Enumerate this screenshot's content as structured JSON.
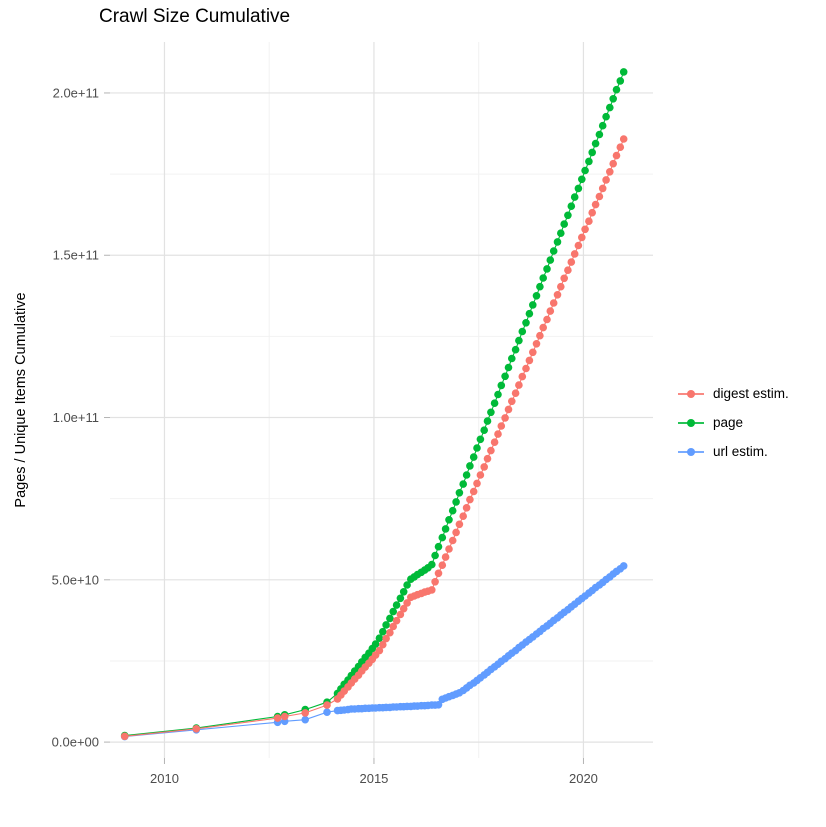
{
  "title": "Crawl Size Cumulative",
  "chart_data": {
    "type": "scatter",
    "title": "Crawl Size Cumulative",
    "xlabel": "",
    "ylabel": "Pages / Unique Items Cumulative",
    "x_tick_labels": [
      "2010",
      "2015",
      "2020"
    ],
    "x_ticks": [
      2010,
      2015,
      2020
    ],
    "x_minor": [
      2012.5,
      2017.5
    ],
    "y_tick_labels": [
      "0.0e+00",
      "5.0e+10",
      "1.0e+11",
      "1.5e+11",
      "2.0e+11"
    ],
    "y_ticks_e9": [
      0,
      50,
      100,
      150,
      200
    ],
    "y_minor_e9": [
      25,
      75,
      125,
      175
    ],
    "xlim": [
      2008.7,
      2021.66
    ],
    "ylim_e9": [
      -4.9,
      215.7
    ],
    "grid": true,
    "legend_position": "right",
    "values_unit": "points are [year, value in billions (1e9)]",
    "series": [
      {
        "name": "digest estim.",
        "color": "#F8766D",
        "points": [
          [
            2009.05,
            1.8
          ],
          [
            2010.76,
            4.1
          ],
          [
            2012.7,
            7.4
          ],
          [
            2012.87,
            7.9
          ],
          [
            2013.36,
            9.0
          ],
          [
            2013.88,
            11.4
          ],
          [
            2014.13,
            13.3
          ],
          [
            2014.21,
            14.5
          ],
          [
            2014.29,
            15.7
          ],
          [
            2014.38,
            17.0
          ],
          [
            2014.46,
            18.2
          ],
          [
            2014.54,
            19.4
          ],
          [
            2014.63,
            20.6
          ],
          [
            2014.71,
            21.9
          ],
          [
            2014.79,
            23.1
          ],
          [
            2014.88,
            24.3
          ],
          [
            2014.96,
            25.5
          ],
          [
            2015.04,
            26.8
          ],
          [
            2015.13,
            28.2
          ],
          [
            2015.21,
            30.0
          ],
          [
            2015.29,
            31.9
          ],
          [
            2015.38,
            33.7
          ],
          [
            2015.46,
            35.6
          ],
          [
            2015.54,
            37.4
          ],
          [
            2015.63,
            39.3
          ],
          [
            2015.71,
            41.1
          ],
          [
            2015.79,
            42.9
          ],
          [
            2015.88,
            44.6
          ],
          [
            2015.96,
            45.0
          ],
          [
            2016.04,
            45.4
          ],
          [
            2016.13,
            45.8
          ],
          [
            2016.21,
            46.2
          ],
          [
            2016.29,
            46.5
          ],
          [
            2016.38,
            46.9
          ],
          [
            2016.46,
            49.4
          ],
          [
            2016.54,
            52.0
          ],
          [
            2016.63,
            54.5
          ],
          [
            2016.71,
            57.0
          ],
          [
            2016.79,
            59.5
          ],
          [
            2016.88,
            62.1
          ],
          [
            2016.96,
            64.6
          ],
          [
            2017.04,
            67.1
          ],
          [
            2017.13,
            69.6
          ],
          [
            2017.21,
            72.2
          ],
          [
            2017.29,
            74.7
          ],
          [
            2017.38,
            77.2
          ],
          [
            2017.46,
            79.7
          ],
          [
            2017.54,
            82.3
          ],
          [
            2017.63,
            84.8
          ],
          [
            2017.71,
            87.3
          ],
          [
            2017.79,
            89.8
          ],
          [
            2017.88,
            92.4
          ],
          [
            2017.96,
            94.9
          ],
          [
            2018.04,
            97.4
          ],
          [
            2018.13,
            99.9
          ],
          [
            2018.21,
            102.5
          ],
          [
            2018.29,
            105.0
          ],
          [
            2018.38,
            107.5
          ],
          [
            2018.46,
            110.0
          ],
          [
            2018.54,
            112.6
          ],
          [
            2018.63,
            115.1
          ],
          [
            2018.71,
            117.6
          ],
          [
            2018.79,
            120.1
          ],
          [
            2018.88,
            122.7
          ],
          [
            2018.96,
            125.2
          ],
          [
            2019.04,
            127.7
          ],
          [
            2019.13,
            130.2
          ],
          [
            2019.21,
            132.8
          ],
          [
            2019.29,
            135.3
          ],
          [
            2019.38,
            137.8
          ],
          [
            2019.46,
            140.3
          ],
          [
            2019.54,
            142.9
          ],
          [
            2019.63,
            145.4
          ],
          [
            2019.71,
            147.9
          ],
          [
            2019.79,
            150.4
          ],
          [
            2019.88,
            153.0
          ],
          [
            2019.96,
            155.5
          ],
          [
            2020.04,
            158.0
          ],
          [
            2020.13,
            160.5
          ],
          [
            2020.21,
            163.1
          ],
          [
            2020.29,
            165.6
          ],
          [
            2020.38,
            168.1
          ],
          [
            2020.46,
            170.6
          ],
          [
            2020.54,
            173.2
          ],
          [
            2020.63,
            175.7
          ],
          [
            2020.71,
            178.2
          ],
          [
            2020.79,
            180.7
          ],
          [
            2020.88,
            183.3
          ],
          [
            2020.96,
            185.8
          ]
        ]
      },
      {
        "name": "page",
        "color": "#00BA38",
        "points": [
          [
            2009.05,
            2.0
          ],
          [
            2010.76,
            4.3
          ],
          [
            2012.7,
            7.9
          ],
          [
            2012.87,
            8.4
          ],
          [
            2013.36,
            10.0
          ],
          [
            2013.88,
            12.3
          ],
          [
            2014.13,
            15.0
          ],
          [
            2014.21,
            16.4
          ],
          [
            2014.29,
            17.8
          ],
          [
            2014.38,
            19.1
          ],
          [
            2014.46,
            20.5
          ],
          [
            2014.54,
            21.9
          ],
          [
            2014.63,
            23.3
          ],
          [
            2014.71,
            24.7
          ],
          [
            2014.79,
            26.1
          ],
          [
            2014.88,
            27.4
          ],
          [
            2014.96,
            28.8
          ],
          [
            2015.04,
            30.2
          ],
          [
            2015.13,
            32.0
          ],
          [
            2015.21,
            34.0
          ],
          [
            2015.29,
            36.1
          ],
          [
            2015.38,
            38.1
          ],
          [
            2015.46,
            40.2
          ],
          [
            2015.54,
            42.2
          ],
          [
            2015.63,
            44.3
          ],
          [
            2015.71,
            46.3
          ],
          [
            2015.79,
            48.4
          ],
          [
            2015.88,
            50.2
          ],
          [
            2015.96,
            50.9
          ],
          [
            2016.04,
            51.6
          ],
          [
            2016.13,
            52.3
          ],
          [
            2016.21,
            53.0
          ],
          [
            2016.29,
            53.7
          ],
          [
            2016.38,
            54.7
          ],
          [
            2016.46,
            57.5
          ],
          [
            2016.54,
            60.2
          ],
          [
            2016.63,
            63.0
          ],
          [
            2016.71,
            65.7
          ],
          [
            2016.79,
            68.5
          ],
          [
            2016.88,
            71.3
          ],
          [
            2016.96,
            74.0
          ],
          [
            2017.04,
            76.8
          ],
          [
            2017.13,
            79.5
          ],
          [
            2017.21,
            82.3
          ],
          [
            2017.29,
            85.1
          ],
          [
            2017.38,
            87.8
          ],
          [
            2017.46,
            90.6
          ],
          [
            2017.54,
            93.3
          ],
          [
            2017.63,
            96.1
          ],
          [
            2017.71,
            98.9
          ],
          [
            2017.79,
            101.6
          ],
          [
            2017.88,
            104.4
          ],
          [
            2017.96,
            107.1
          ],
          [
            2018.04,
            109.9
          ],
          [
            2018.13,
            112.7
          ],
          [
            2018.21,
            115.4
          ],
          [
            2018.29,
            118.2
          ],
          [
            2018.38,
            120.9
          ],
          [
            2018.46,
            123.7
          ],
          [
            2018.54,
            126.5
          ],
          [
            2018.63,
            129.2
          ],
          [
            2018.71,
            132.0
          ],
          [
            2018.79,
            134.7
          ],
          [
            2018.88,
            137.5
          ],
          [
            2018.96,
            140.3
          ],
          [
            2019.04,
            143.0
          ],
          [
            2019.13,
            145.8
          ],
          [
            2019.21,
            148.5
          ],
          [
            2019.29,
            151.3
          ],
          [
            2019.38,
            154.1
          ],
          [
            2019.46,
            156.8
          ],
          [
            2019.54,
            159.6
          ],
          [
            2019.63,
            162.3
          ],
          [
            2019.71,
            165.1
          ],
          [
            2019.79,
            167.9
          ],
          [
            2019.88,
            170.6
          ],
          [
            2019.96,
            173.4
          ],
          [
            2020.04,
            176.1
          ],
          [
            2020.13,
            178.9
          ],
          [
            2020.21,
            181.7
          ],
          [
            2020.29,
            184.4
          ],
          [
            2020.38,
            187.2
          ],
          [
            2020.46,
            189.9
          ],
          [
            2020.54,
            192.7
          ],
          [
            2020.63,
            195.5
          ],
          [
            2020.71,
            198.2
          ],
          [
            2020.79,
            201.0
          ],
          [
            2020.88,
            203.7
          ],
          [
            2020.96,
            206.5
          ]
        ]
      },
      {
        "name": "url estim.",
        "color": "#619CFF",
        "points": [
          [
            2009.05,
            1.7
          ],
          [
            2010.76,
            3.8
          ],
          [
            2012.7,
            6.1
          ],
          [
            2012.87,
            6.4
          ],
          [
            2013.36,
            6.9
          ],
          [
            2013.88,
            9.2
          ],
          [
            2014.13,
            9.7
          ],
          [
            2014.21,
            9.8
          ],
          [
            2014.29,
            9.9
          ],
          [
            2014.38,
            10.0
          ],
          [
            2014.46,
            10.2
          ],
          [
            2014.54,
            10.2
          ],
          [
            2014.63,
            10.3
          ],
          [
            2014.71,
            10.3
          ],
          [
            2014.79,
            10.4
          ],
          [
            2014.88,
            10.4
          ],
          [
            2014.96,
            10.5
          ],
          [
            2015.04,
            10.5
          ],
          [
            2015.13,
            10.6
          ],
          [
            2015.21,
            10.6
          ],
          [
            2015.29,
            10.7
          ],
          [
            2015.38,
            10.7
          ],
          [
            2015.46,
            10.8
          ],
          [
            2015.54,
            10.8
          ],
          [
            2015.63,
            10.9
          ],
          [
            2015.71,
            10.9
          ],
          [
            2015.79,
            11.0
          ],
          [
            2015.88,
            11.0
          ],
          [
            2015.96,
            11.1
          ],
          [
            2016.04,
            11.1
          ],
          [
            2016.13,
            11.2
          ],
          [
            2016.21,
            11.2
          ],
          [
            2016.29,
            11.3
          ],
          [
            2016.38,
            11.4
          ],
          [
            2016.46,
            11.4
          ],
          [
            2016.54,
            11.5
          ],
          [
            2016.63,
            13.2
          ],
          [
            2016.71,
            13.6
          ],
          [
            2016.79,
            14.0
          ],
          [
            2016.88,
            14.4
          ],
          [
            2016.96,
            14.8
          ],
          [
            2017.04,
            15.2
          ],
          [
            2017.13,
            15.9
          ],
          [
            2017.21,
            16.7
          ],
          [
            2017.29,
            17.5
          ],
          [
            2017.38,
            18.2
          ],
          [
            2017.46,
            19.0
          ],
          [
            2017.54,
            19.8
          ],
          [
            2017.63,
            20.7
          ],
          [
            2017.71,
            21.5
          ],
          [
            2017.79,
            22.4
          ],
          [
            2017.88,
            23.2
          ],
          [
            2017.96,
            24.0
          ],
          [
            2018.04,
            24.9
          ],
          [
            2018.13,
            25.7
          ],
          [
            2018.21,
            26.6
          ],
          [
            2018.29,
            27.4
          ],
          [
            2018.38,
            28.2
          ],
          [
            2018.46,
            29.1
          ],
          [
            2018.54,
            29.9
          ],
          [
            2018.63,
            30.8
          ],
          [
            2018.71,
            31.6
          ],
          [
            2018.79,
            32.4
          ],
          [
            2018.88,
            33.3
          ],
          [
            2018.96,
            34.1
          ],
          [
            2019.04,
            35.0
          ],
          [
            2019.13,
            35.8
          ],
          [
            2019.21,
            36.6
          ],
          [
            2019.29,
            37.5
          ],
          [
            2019.38,
            38.3
          ],
          [
            2019.46,
            39.2
          ],
          [
            2019.54,
            40.0
          ],
          [
            2019.63,
            40.8
          ],
          [
            2019.71,
            41.7
          ],
          [
            2019.79,
            42.5
          ],
          [
            2019.88,
            43.4
          ],
          [
            2019.96,
            44.2
          ],
          [
            2020.04,
            45.0
          ],
          [
            2020.13,
            45.9
          ],
          [
            2020.21,
            46.7
          ],
          [
            2020.29,
            47.6
          ],
          [
            2020.38,
            48.4
          ],
          [
            2020.46,
            49.2
          ],
          [
            2020.54,
            50.1
          ],
          [
            2020.63,
            50.9
          ],
          [
            2020.71,
            51.8
          ],
          [
            2020.79,
            52.6
          ],
          [
            2020.88,
            53.4
          ],
          [
            2020.96,
            54.3
          ]
        ]
      }
    ]
  },
  "legend": {
    "items": [
      {
        "label": "digest estim.",
        "color": "#F8766D"
      },
      {
        "label": "page",
        "color": "#00BA38"
      },
      {
        "label": "url estim.",
        "color": "#619CFF"
      }
    ]
  },
  "colors": {
    "background": "#ffffff",
    "grid_major": "#e2e2e2",
    "grid_minor": "#f2f2f2",
    "tick": "#b3b3b3",
    "axis_text": "#4d4d4d",
    "title_text": "#000000"
  }
}
